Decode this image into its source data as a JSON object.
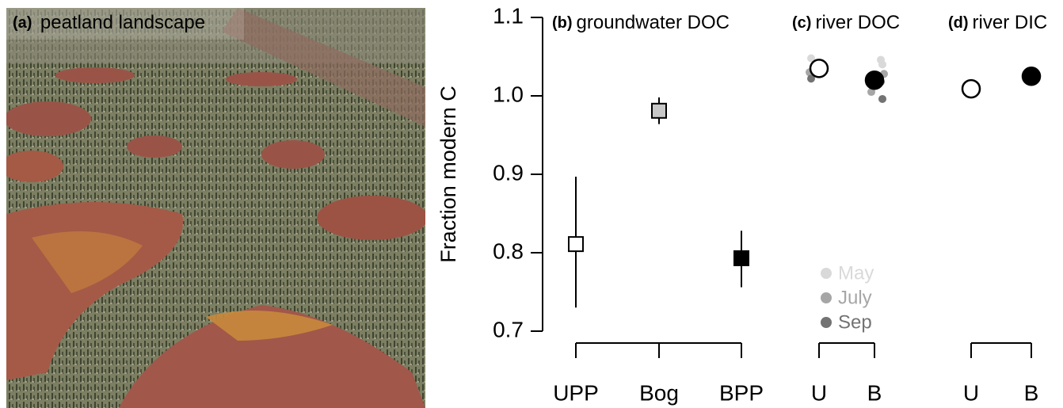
{
  "photo": {
    "tag": "(a)",
    "title": "peatland landscape"
  },
  "chart_data": [
    {
      "type": "errorbar",
      "tag": "(b)",
      "title": "groundwater DOC",
      "ylabel": "Fraction modern C",
      "ylim": [
        0.7,
        1.1
      ],
      "yticks": [
        0.7,
        0.8,
        0.9,
        {
          "value": 1.0,
          "label": "1.0"
        },
        1.1
      ],
      "categories": [
        "UPP",
        "Bog",
        "BPP"
      ],
      "values": [
        0.811,
        0.981,
        0.793
      ],
      "lower": [
        0.73,
        0.964,
        0.756
      ],
      "upper": [
        0.897,
        0.998,
        0.828
      ],
      "colors": [
        "#ffffff",
        "#c8c8c8",
        "#000000"
      ]
    },
    {
      "type": "dots",
      "tag": "(c)",
      "title": "river DOC",
      "categories": [
        "U",
        "B"
      ],
      "values": [
        1.035,
        1.02
      ],
      "colors": [
        "#ffffff",
        "#000000"
      ],
      "series": [
        {
          "name": "May",
          "color": "#d9d9d9",
          "values": [
            [
              1.048,
              1.042
            ],
            [
              1.046,
              1.04
            ]
          ]
        },
        {
          "name": "July",
          "color": "#a6a6a6",
          "values": [
            [
              1.038,
              1.03
            ],
            [
              1.028,
              1.005
            ]
          ]
        },
        {
          "name": "Sep",
          "color": "#737373",
          "values": [
            [
              1.022,
              1.028
            ],
            [
              1.018,
              0.996
            ]
          ]
        }
      ]
    },
    {
      "type": "dots",
      "tag": "(d)",
      "title": "river DIC",
      "categories": [
        "U",
        "B"
      ],
      "values": [
        1.009,
        1.025
      ],
      "colors": [
        "#ffffff",
        "#000000"
      ]
    }
  ]
}
